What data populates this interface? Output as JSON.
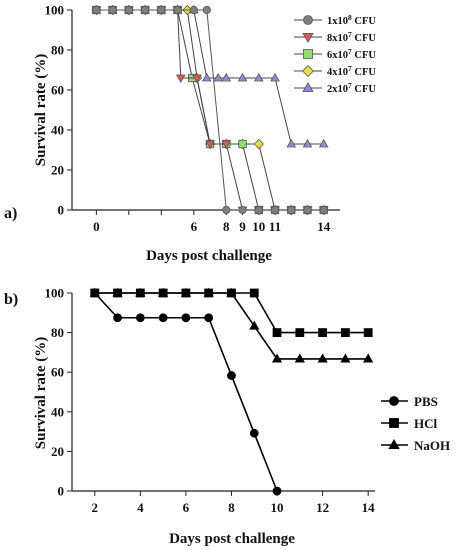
{
  "chart_data": [
    {
      "type": "line",
      "panel_label": "a)",
      "xlabel": "Days post challenge",
      "ylabel": "Survival rate (%)",
      "xlim": [
        -1.5,
        15
      ],
      "ylim": [
        0,
        100
      ],
      "x_ticks": [
        0,
        2,
        4,
        6,
        8,
        9,
        10,
        11,
        12,
        14
      ],
      "x_tick_labels": [
        "0",
        "",
        "",
        "6",
        "8",
        "9",
        "10",
        "11",
        "",
        "14"
      ],
      "y_ticks": [
        0,
        20,
        40,
        60,
        80,
        100
      ],
      "legend_position": "top-right",
      "series": [
        {
          "name": "1x10^8 CFU",
          "legend_label": "1x10",
          "legend_sup": "8",
          "legend_unit": " CFU",
          "marker": "circle",
          "color": "#7f7f7f",
          "line_color": "#555555",
          "x": [
            0,
            1,
            2,
            3,
            4,
            5,
            6,
            6.8,
            8,
            9,
            10,
            11,
            12,
            13,
            14
          ],
          "y": [
            100,
            100,
            100,
            100,
            100,
            100,
            100,
            100,
            0,
            0,
            0,
            0,
            0,
            0,
            0
          ]
        },
        {
          "name": "8x10^7 CFU",
          "legend_label": "8x10",
          "legend_sup": "7",
          "legend_unit": " CFU",
          "marker": "triangle-down",
          "color": "#e05a5a",
          "line_color": "#444444",
          "x": [
            0,
            1,
            2,
            3,
            4,
            5,
            5.2,
            6.2,
            7,
            8,
            9,
            10,
            11,
            12,
            13,
            14
          ],
          "y": [
            100,
            100,
            100,
            100,
            100,
            100,
            66,
            66,
            33,
            33,
            0,
            0,
            0,
            0,
            0,
            0
          ]
        },
        {
          "name": "6x10^7 CFU",
          "legend_label": "6x10",
          "legend_sup": "7",
          "legend_unit": " CFU",
          "marker": "square",
          "color": "#8fdc72",
          "line_color": "#444444",
          "x": [
            0,
            1,
            2,
            3,
            4,
            5,
            5.9,
            7,
            8,
            9,
            10,
            11,
            12,
            13,
            14
          ],
          "y": [
            100,
            100,
            100,
            100,
            100,
            100,
            66,
            33,
            33,
            33,
            0,
            0,
            0,
            0,
            0
          ]
        },
        {
          "name": "4x10^7 CFU",
          "legend_label": "4x10",
          "legend_sup": "7",
          "legend_unit": " CFU",
          "marker": "diamond",
          "color": "#e3e14a",
          "line_color": "#444444",
          "x": [
            0,
            1,
            2,
            3,
            4,
            5,
            5.6,
            6.2,
            7,
            8,
            9,
            10,
            11,
            12,
            13,
            14
          ],
          "y": [
            100,
            100,
            100,
            100,
            100,
            100,
            100,
            66,
            33,
            33,
            33,
            33,
            0,
            0,
            0,
            0
          ]
        },
        {
          "name": "2x10^7 CFU",
          "legend_label": "2x10",
          "legend_sup": "7",
          "legend_unit": " CFU",
          "marker": "triangle",
          "color": "#8c8ce0",
          "line_color": "#444444",
          "x": [
            0,
            1,
            2,
            3,
            4,
            5,
            6,
            6.8,
            7.5,
            8,
            9,
            10,
            11,
            12,
            13,
            14
          ],
          "y": [
            100,
            100,
            100,
            100,
            100,
            100,
            100,
            66,
            66,
            66,
            66,
            66,
            66,
            33,
            33,
            33
          ]
        }
      ]
    },
    {
      "type": "line",
      "panel_label": "b)",
      "xlabel": "Days post challenge",
      "ylabel": "Survival rate (%)",
      "xlim": [
        1,
        14.3
      ],
      "ylim": [
        0,
        100
      ],
      "x_ticks": [
        2,
        4,
        6,
        8,
        10,
        12,
        14
      ],
      "y_ticks": [
        0,
        20,
        40,
        60,
        80,
        100
      ],
      "legend_position": "right",
      "series": [
        {
          "name": "PBS",
          "marker": "circle",
          "color": "#000000",
          "x": [
            2,
            3,
            4,
            5,
            6,
            7,
            8,
            9,
            10
          ],
          "y": [
            100,
            87.5,
            87.5,
            87.5,
            87.5,
            87.5,
            58.3,
            29.2,
            0
          ]
        },
        {
          "name": "HCl",
          "marker": "square",
          "color": "#000000",
          "x": [
            2,
            3,
            4,
            5,
            6,
            7,
            8,
            9,
            10,
            11,
            12,
            13,
            14
          ],
          "y": [
            100,
            100,
            100,
            100,
            100,
            100,
            100,
            100,
            80,
            80,
            80,
            80,
            80
          ]
        },
        {
          "name": "NaOH",
          "marker": "triangle",
          "color": "#000000",
          "x": [
            2,
            3,
            4,
            5,
            6,
            7,
            8,
            9,
            10,
            11,
            12,
            13,
            14
          ],
          "y": [
            100,
            100,
            100,
            100,
            100,
            100,
            100,
            83.3,
            66.7,
            66.7,
            66.7,
            66.7,
            66.7
          ]
        }
      ]
    }
  ]
}
